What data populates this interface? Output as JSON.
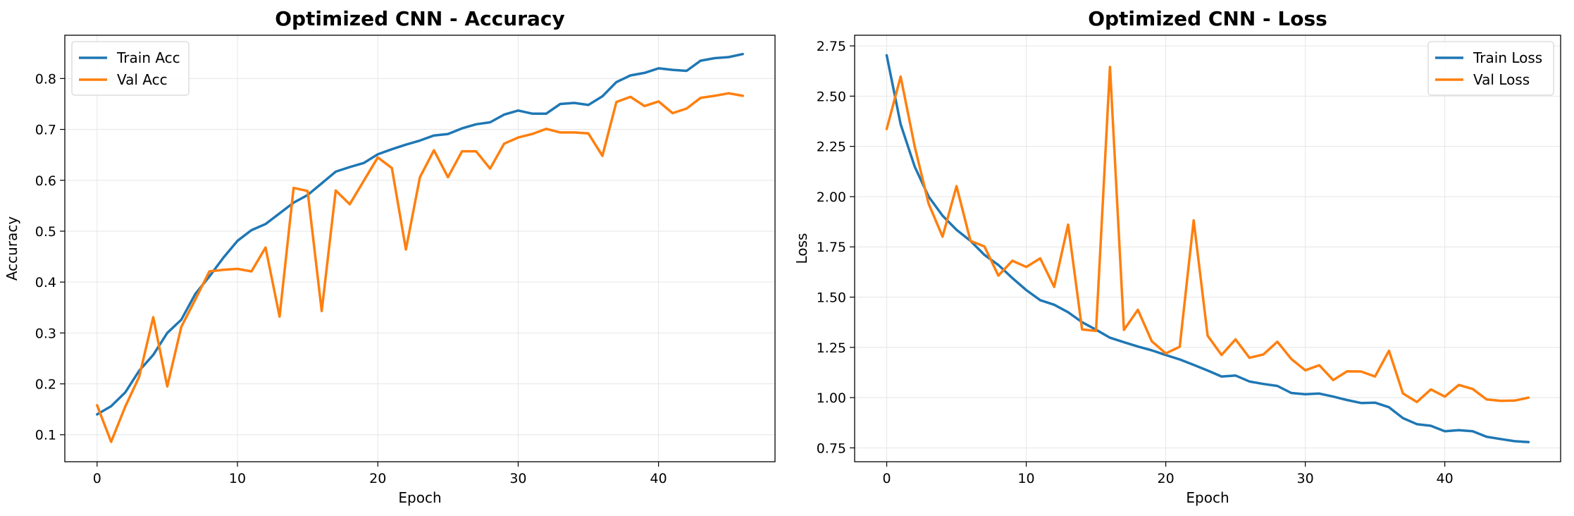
{
  "colors": {
    "train": "#1f77b4",
    "val": "#ff7f0e",
    "grid": "#e6e6e6",
    "axis": "#000000"
  },
  "chart_data": [
    {
      "type": "line",
      "title": "Optimized CNN - Accuracy",
      "xlabel": "Epoch",
      "ylabel": "Accuracy",
      "xlim": [
        -2.3,
        48.3
      ],
      "ylim": [
        0.047,
        0.885
      ],
      "xticks": [
        0,
        10,
        20,
        30,
        40
      ],
      "yticks": [
        0.1,
        0.2,
        0.3,
        0.4,
        0.5,
        0.6,
        0.7,
        0.8
      ],
      "ytick_labels": [
        "0.1",
        "0.2",
        "0.3",
        "0.4",
        "0.5",
        "0.6",
        "0.7",
        "0.8"
      ],
      "grid": true,
      "legend_position": "top-left",
      "x": [
        0,
        1,
        2,
        3,
        4,
        5,
        6,
        7,
        8,
        9,
        10,
        11,
        12,
        13,
        14,
        15,
        16,
        17,
        18,
        19,
        20,
        21,
        22,
        23,
        24,
        25,
        26,
        27,
        28,
        29,
        30,
        31,
        32,
        33,
        34,
        35,
        36,
        37,
        38,
        39,
        40,
        41,
        42,
        43,
        44,
        45,
        46
      ],
      "series": [
        {
          "name": "Train Acc",
          "color": "#1f77b4",
          "values": [
            0.14,
            0.156,
            0.183,
            0.226,
            0.257,
            0.3,
            0.326,
            0.377,
            0.411,
            0.448,
            0.481,
            0.502,
            0.514,
            0.535,
            0.556,
            0.571,
            0.594,
            0.617,
            0.626,
            0.634,
            0.651,
            0.661,
            0.67,
            0.678,
            0.688,
            0.691,
            0.702,
            0.71,
            0.714,
            0.729,
            0.737,
            0.731,
            0.731,
            0.75,
            0.752,
            0.748,
            0.765,
            0.793,
            0.806,
            0.811,
            0.82,
            0.817,
            0.815,
            0.835,
            0.84,
            0.842,
            0.848
          ]
        },
        {
          "name": "Val Acc",
          "color": "#ff7f0e",
          "values": [
            0.158,
            0.086,
            0.155,
            0.214,
            0.331,
            0.195,
            0.312,
            0.366,
            0.421,
            0.424,
            0.426,
            0.421,
            0.468,
            0.332,
            0.585,
            0.579,
            0.343,
            0.58,
            0.553,
            0.599,
            0.645,
            0.624,
            0.464,
            0.606,
            0.659,
            0.606,
            0.657,
            0.657,
            0.623,
            0.672,
            0.684,
            0.691,
            0.701,
            0.694,
            0.694,
            0.692,
            0.648,
            0.754,
            0.764,
            0.746,
            0.755,
            0.732,
            0.741,
            0.762,
            0.766,
            0.771,
            0.766
          ]
        }
      ]
    },
    {
      "type": "line",
      "title": "Optimized CNN - Loss",
      "xlabel": "Epoch",
      "ylabel": "Loss",
      "xlim": [
        -2.3,
        48.3
      ],
      "ylim": [
        0.681,
        2.803
      ],
      "xticks": [
        0,
        10,
        20,
        30,
        40
      ],
      "yticks": [
        0.75,
        1.0,
        1.25,
        1.5,
        1.75,
        2.0,
        2.25,
        2.5,
        2.75
      ],
      "ytick_labels": [
        "0.75",
        "1.00",
        "1.25",
        "1.50",
        "1.75",
        "2.00",
        "2.25",
        "2.50",
        "2.75"
      ],
      "grid": true,
      "legend_position": "top-right",
      "x": [
        0,
        1,
        2,
        3,
        4,
        5,
        6,
        7,
        8,
        9,
        10,
        11,
        12,
        13,
        14,
        15,
        16,
        17,
        18,
        19,
        20,
        21,
        22,
        23,
        24,
        25,
        26,
        27,
        28,
        29,
        30,
        31,
        32,
        33,
        34,
        35,
        36,
        37,
        38,
        39,
        40,
        41,
        42,
        43,
        44,
        45,
        46
      ],
      "series": [
        {
          "name": "Train Loss",
          "color": "#1f77b4",
          "values": [
            2.703,
            2.36,
            2.15,
            2.0,
            1.905,
            1.835,
            1.78,
            1.71,
            1.66,
            1.595,
            1.535,
            1.485,
            1.462,
            1.425,
            1.375,
            1.338,
            1.298,
            1.276,
            1.254,
            1.235,
            1.212,
            1.19,
            1.163,
            1.135,
            1.105,
            1.11,
            1.08,
            1.068,
            1.058,
            1.023,
            1.017,
            1.02,
            1.005,
            0.988,
            0.973,
            0.975,
            0.952,
            0.898,
            0.868,
            0.86,
            0.833,
            0.838,
            0.833,
            0.805,
            0.794,
            0.783,
            0.779
          ]
        },
        {
          "name": "Val Loss",
          "color": "#ff7f0e",
          "values": [
            2.336,
            2.597,
            2.25,
            1.965,
            1.801,
            2.052,
            1.78,
            1.752,
            1.607,
            1.681,
            1.65,
            1.693,
            1.551,
            1.861,
            1.339,
            1.332,
            2.645,
            1.337,
            1.437,
            1.28,
            1.22,
            1.253,
            1.882,
            1.308,
            1.212,
            1.29,
            1.198,
            1.215,
            1.278,
            1.192,
            1.136,
            1.161,
            1.087,
            1.131,
            1.13,
            1.105,
            1.233,
            1.021,
            0.978,
            1.041,
            1.005,
            1.063,
            1.043,
            0.991,
            0.984,
            0.985,
            1.0
          ]
        }
      ]
    }
  ]
}
